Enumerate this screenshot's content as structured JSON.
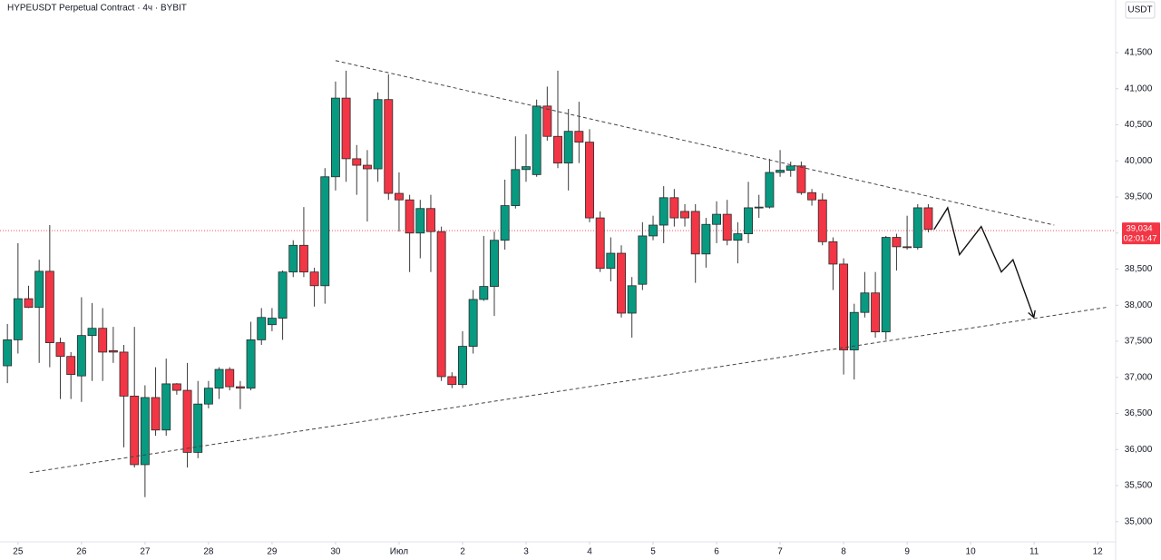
{
  "chart_data": {
    "type": "candlestick",
    "title": "HYPEUSDT Perpetual Contract · 4ч · BYBIT",
    "unit": "USDT",
    "up_color": "#089981",
    "down_color": "#f23645",
    "open": [
      37160,
      37520,
      38090,
      37970,
      38470,
      37480,
      37290,
      37020,
      37580,
      37680,
      37370,
      37350,
      36740,
      35790,
      36720,
      36270,
      36910,
      36820,
      35960,
      36630,
      36850,
      37110,
      36870,
      36850,
      37520,
      37730,
      37820,
      38460,
      38830,
      38460,
      38270,
      39780,
      40870,
      40030,
      39940,
      39890,
      40850,
      39550,
      39460,
      39000,
      39340,
      39020,
      37010,
      36900,
      37430,
      38080,
      38260,
      38900,
      39380,
      39880,
      39810,
      40760,
      40340,
      39970,
      40410,
      40260,
      39210,
      38510,
      38720,
      37890,
      38290,
      38960,
      39110,
      39490,
      39300,
      39300,
      38710,
      39120,
      39260,
      38900,
      38990,
      39350,
      39360,
      39840,
      39870,
      39930,
      39560,
      39460,
      38880,
      38570,
      37380,
      37900,
      38170,
      37630,
      38940,
      38810,
      38800,
      39350
    ],
    "high": [
      37740,
      38860,
      38270,
      38630,
      39110,
      37550,
      37350,
      38110,
      38030,
      37960,
      37700,
      37450,
      37700,
      36890,
      37140,
      37260,
      36920,
      37200,
      36950,
      36950,
      37140,
      37140,
      36950,
      37770,
      37960,
      37960,
      38480,
      38900,
      39360,
      38520,
      39900,
      41100,
      41250,
      40220,
      40150,
      40950,
      41200,
      39840,
      39530,
      39460,
      39530,
      39090,
      37070,
      37640,
      38210,
      38960,
      39020,
      39740,
      40340,
      40370,
      40850,
      41030,
      41250,
      40720,
      40820,
      40440,
      39300,
      38940,
      38830,
      38390,
      39150,
      39240,
      39650,
      39610,
      39400,
      39400,
      39210,
      39440,
      39460,
      39150,
      39710,
      39530,
      40030,
      40150,
      39990,
      39990,
      39610,
      39550,
      38940,
      38650,
      38020,
      38460,
      38460,
      38960,
      38990,
      39240,
      39400,
      39400
    ],
    "low": [
      36920,
      37330,
      37960,
      37200,
      37140,
      36700,
      36700,
      36660,
      36950,
      36950,
      37200,
      36030,
      35750,
      35340,
      36190,
      36190,
      36760,
      35750,
      35880,
      36570,
      36700,
      36820,
      36560,
      36820,
      37450,
      37640,
      37520,
      38390,
      38390,
      37980,
      38020,
      39590,
      39710,
      39530,
      39160,
      39710,
      39460,
      39020,
      38460,
      38650,
      38460,
      36950,
      36850,
      36850,
      37330,
      38060,
      37850,
      38770,
      39340,
      39710,
      39780,
      40280,
      39900,
      39590,
      39970,
      39150,
      38460,
      38330,
      37830,
      37550,
      38210,
      38900,
      38860,
      39090,
      39090,
      38310,
      38520,
      38860,
      38830,
      38580,
      38860,
      39210,
      39340,
      39780,
      39780,
      39530,
      39380,
      38830,
      38210,
      37040,
      36970,
      37830,
      37550,
      37520,
      38480,
      38770,
      38770,
      39010
    ],
    "close": [
      37520,
      38090,
      37970,
      38470,
      37480,
      37290,
      37040,
      37580,
      37680,
      37350,
      37350,
      36740,
      35790,
      36720,
      36270,
      36910,
      36820,
      35960,
      36630,
      36850,
      37110,
      36870,
      36850,
      37520,
      37830,
      37820,
      38460,
      38830,
      38460,
      38270,
      39780,
      40870,
      40030,
      39940,
      39890,
      40850,
      39550,
      39460,
      39000,
      39340,
      39020,
      37010,
      36900,
      37430,
      38080,
      38260,
      38900,
      39380,
      39880,
      39920,
      40760,
      40340,
      39970,
      40410,
      40260,
      39210,
      38510,
      38720,
      37890,
      38270,
      38960,
      39110,
      39490,
      39210,
      39210,
      38710,
      39120,
      39260,
      38900,
      38990,
      39350,
      39360,
      39840,
      39870,
      39930,
      39560,
      39460,
      38880,
      38570,
      37380,
      37900,
      38170,
      37630,
      38940,
      38810,
      38800,
      39350,
      39050
    ],
    "xlim": [
      -0.7,
      104.7
    ],
    "xticks": [
      {
        "value": 1,
        "label": "25"
      },
      {
        "value": 7,
        "label": "26"
      },
      {
        "value": 13,
        "label": "27"
      },
      {
        "value": 19,
        "label": "28"
      },
      {
        "value": 25,
        "label": "29"
      },
      {
        "value": 31,
        "label": "30"
      },
      {
        "value": 37,
        "label": "Июл"
      },
      {
        "value": 43,
        "label": "2"
      },
      {
        "value": 49,
        "label": "3"
      },
      {
        "value": 55,
        "label": "4"
      },
      {
        "value": 61,
        "label": "5"
      },
      {
        "value": 67,
        "label": "6"
      },
      {
        "value": 73,
        "label": "7"
      },
      {
        "value": 79,
        "label": "8"
      },
      {
        "value": 85,
        "label": "9"
      },
      {
        "value": 91,
        "label": "10"
      },
      {
        "value": 97,
        "label": "11"
      },
      {
        "value": 103,
        "label": "12"
      }
    ],
    "ylim": [
      34720,
      42230
    ],
    "yticks": [
      {
        "value": 35000,
        "label": "35,000"
      },
      {
        "value": 35500,
        "label": "35,500"
      },
      {
        "value": 36000,
        "label": "36,000"
      },
      {
        "value": 36500,
        "label": "36,500"
      },
      {
        "value": 37000,
        "label": "37,000"
      },
      {
        "value": 37500,
        "label": "37,500"
      },
      {
        "value": 38000,
        "label": "38,000"
      },
      {
        "value": 38500,
        "label": "38,500"
      },
      {
        "value": 39000,
        "label": "39,000"
      },
      {
        "value": 39500,
        "label": "39,500"
      },
      {
        "value": 40000,
        "label": "40,000"
      },
      {
        "value": 40500,
        "label": "40,500"
      },
      {
        "value": 41000,
        "label": "41,000"
      },
      {
        "value": 41500,
        "label": "41,500"
      }
    ],
    "grid": false,
    "last_price": {
      "value": 39034,
      "label": "39,034",
      "countdown": "02:01:47"
    },
    "trendlines": [
      {
        "x": [
          31.0,
          98.9
        ],
        "y": [
          41390,
          39110
        ]
      },
      {
        "x": [
          2.1,
          103.8
        ],
        "y": [
          35680,
          37970
        ]
      }
    ],
    "projection": {
      "x": [
        87.55,
        88.83,
        89.95,
        92.0,
        93.9,
        95.0,
        96.97
      ],
      "y": [
        39050,
        39350,
        38700,
        39090,
        38460,
        38630,
        37830
      ]
    }
  }
}
